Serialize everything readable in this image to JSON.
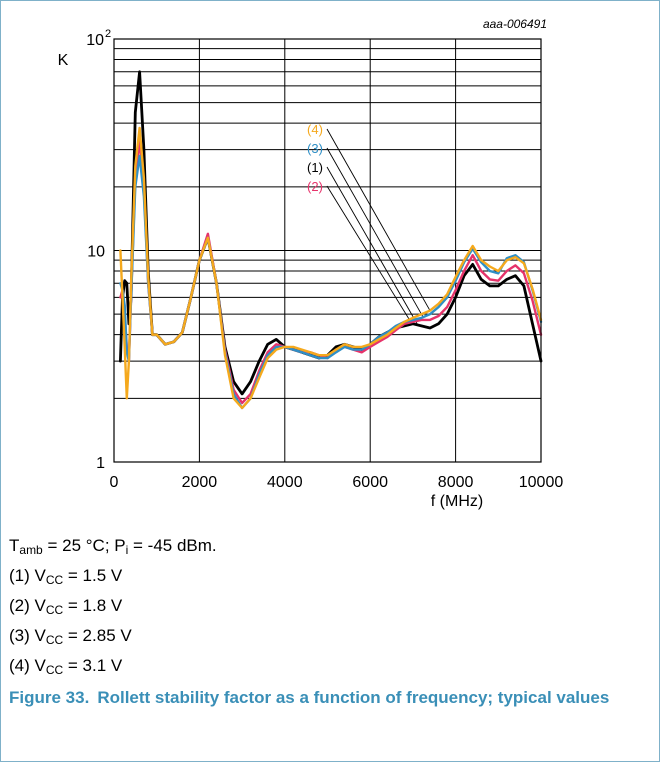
{
  "figure": {
    "ref": "aaa-006491",
    "number_label": "Figure 33.",
    "caption": "Rollett stability factor as a function of frequency; typical values"
  },
  "conditions": {
    "t_sym": "T",
    "t_sub": "amb",
    "t_rest": " = 25 °C; ",
    "p_sym": "P",
    "p_sub": "i",
    "p_rest": " = -45 dBm."
  },
  "legend_notes": [
    {
      "tag": "(1) ",
      "sym": "V",
      "sub": "CC",
      "rest": " = 1.5 V"
    },
    {
      "tag": "(2) ",
      "sym": "V",
      "sub": "CC",
      "rest": " = 1.8 V"
    },
    {
      "tag": "(3) ",
      "sym": "V",
      "sub": "CC",
      "rest": " = 2.85 V"
    },
    {
      "tag": "(4) ",
      "sym": "V",
      "sub": "CC",
      "rest": " = 3.1 V"
    }
  ],
  "chart_data": {
    "type": "line",
    "xlabel": "f (MHz)",
    "ylabel": "K",
    "xlim": [
      0,
      10000
    ],
    "ylim": [
      1,
      100
    ],
    "y_scale": "log",
    "x_ticks": [
      0,
      2000,
      4000,
      6000,
      8000,
      10000
    ],
    "x_tick_labels": [
      "0",
      "2000",
      "4000",
      "6000",
      "8000",
      "10000"
    ],
    "y_tick_labels": {
      "top": "10",
      "top_exp": "2",
      "mid": "10",
      "bottom": "1"
    },
    "grid": true,
    "series": [
      {
        "name": "(1)",
        "color": "#000000",
        "x": [
          150,
          200,
          250,
          300,
          350,
          400,
          500,
          600,
          700,
          800,
          900,
          1000,
          1200,
          1400,
          1600,
          1800,
          2000,
          2200,
          2400,
          2600,
          2800,
          3000,
          3200,
          3400,
          3600,
          3800,
          4000,
          4200,
          4400,
          4600,
          4800,
          5000,
          5200,
          5400,
          5600,
          5800,
          6000,
          6200,
          6400,
          6600,
          6800,
          7000,
          7200,
          7400,
          7600,
          7800,
          8000,
          8200,
          8400,
          8600,
          8800,
          9000,
          9200,
          9400,
          9600,
          9800,
          10000
        ],
        "y": [
          3.0,
          6.0,
          7.2,
          7.0,
          4.5,
          6.0,
          45.0,
          70.0,
          30.0,
          8.0,
          4.0,
          4.0,
          3.6,
          3.7,
          4.1,
          6.0,
          9.0,
          11.5,
          7.0,
          3.5,
          2.4,
          2.1,
          2.4,
          3.0,
          3.6,
          3.8,
          3.5,
          3.4,
          3.3,
          3.2,
          3.1,
          3.2,
          3.5,
          3.6,
          3.5,
          3.4,
          3.6,
          3.9,
          4.1,
          4.3,
          4.4,
          4.5,
          4.4,
          4.3,
          4.5,
          5.0,
          6.0,
          7.6,
          8.6,
          7.3,
          6.8,
          6.8,
          7.3,
          7.6,
          6.8,
          4.5,
          3.0
        ]
      },
      {
        "name": "(2)",
        "color": "#e6336b",
        "x": [
          150,
          200,
          250,
          300,
          350,
          400,
          500,
          600,
          700,
          800,
          900,
          1000,
          1200,
          1400,
          1600,
          1800,
          2000,
          2200,
          2400,
          2600,
          2800,
          3000,
          3200,
          3400,
          3600,
          3800,
          4000,
          4200,
          4400,
          4600,
          4800,
          5000,
          5200,
          5400,
          5600,
          5800,
          6000,
          6200,
          6400,
          6600,
          6800,
          7000,
          7200,
          7400,
          7600,
          7800,
          8000,
          8200,
          8400,
          8600,
          8800,
          9000,
          9200,
          9400,
          9600,
          9800,
          10000
        ],
        "y": [
          6.0,
          6.5,
          5.0,
          3.5,
          3.0,
          6.0,
          22.0,
          33.0,
          20.0,
          7.0,
          4.0,
          4.0,
          3.6,
          3.7,
          4.1,
          6.0,
          9.0,
          12.0,
          7.0,
          3.4,
          2.2,
          1.9,
          2.1,
          2.7,
          3.3,
          3.6,
          3.5,
          3.4,
          3.3,
          3.3,
          3.2,
          3.1,
          3.4,
          3.5,
          3.4,
          3.3,
          3.5,
          3.7,
          3.9,
          4.2,
          4.5,
          4.6,
          4.7,
          4.7,
          4.9,
          5.4,
          6.5,
          8.0,
          9.5,
          8.0,
          7.3,
          7.2,
          8.0,
          8.5,
          7.8,
          5.8,
          4.0
        ]
      },
      {
        "name": "(3)",
        "color": "#2f8fc6",
        "x": [
          150,
          200,
          250,
          300,
          350,
          400,
          500,
          600,
          700,
          800,
          900,
          1000,
          1200,
          1400,
          1600,
          1800,
          2000,
          2200,
          2400,
          2600,
          2800,
          3000,
          3200,
          3400,
          3600,
          3800,
          4000,
          4200,
          4400,
          4600,
          4800,
          5000,
          5200,
          5400,
          5600,
          5800,
          6000,
          6200,
          6400,
          6600,
          6800,
          7000,
          7200,
          7400,
          7600,
          7800,
          8000,
          8200,
          8400,
          8600,
          8800,
          9000,
          9200,
          9400,
          9600,
          9800,
          10000
        ],
        "y": [
          7.0,
          6.5,
          5.5,
          3.3,
          3.0,
          6.0,
          20.0,
          28.0,
          18.0,
          7.0,
          4.0,
          4.0,
          3.6,
          3.7,
          4.1,
          6.0,
          9.0,
          11.5,
          7.0,
          3.3,
          2.1,
          1.8,
          2.0,
          2.6,
          3.2,
          3.5,
          3.5,
          3.4,
          3.3,
          3.2,
          3.1,
          3.1,
          3.3,
          3.5,
          3.4,
          3.4,
          3.6,
          3.9,
          4.1,
          4.4,
          4.6,
          4.7,
          4.8,
          5.0,
          5.4,
          6.0,
          7.2,
          8.8,
          10.2,
          8.8,
          8.0,
          7.8,
          9.2,
          9.5,
          8.8,
          6.5,
          4.6
        ]
      },
      {
        "name": "(4)",
        "color": "#f5a91d",
        "x": [
          150,
          200,
          250,
          300,
          350,
          400,
          500,
          600,
          700,
          800,
          900,
          1000,
          1200,
          1400,
          1600,
          1800,
          2000,
          2200,
          2400,
          2600,
          2800,
          3000,
          3200,
          3400,
          3600,
          3800,
          4000,
          4200,
          4400,
          4600,
          4800,
          5000,
          5200,
          5400,
          5600,
          5800,
          6000,
          6200,
          6400,
          6600,
          6800,
          7000,
          7200,
          7400,
          7600,
          7800,
          8000,
          8200,
          8400,
          8600,
          8800,
          9000,
          9200,
          9400,
          9600,
          9800,
          10000
        ],
        "y": [
          10.0,
          6.0,
          3.5,
          2.0,
          3.0,
          7.0,
          25.0,
          38.0,
          22.0,
          7.5,
          4.0,
          4.0,
          3.6,
          3.7,
          4.1,
          6.0,
          9.0,
          11.5,
          7.0,
          3.2,
          2.0,
          1.8,
          2.0,
          2.5,
          3.1,
          3.4,
          3.5,
          3.5,
          3.4,
          3.3,
          3.2,
          3.2,
          3.4,
          3.6,
          3.5,
          3.5,
          3.6,
          3.8,
          4.0,
          4.3,
          4.6,
          4.8,
          5.0,
          5.2,
          5.6,
          6.2,
          7.5,
          9.0,
          10.5,
          9.0,
          8.4,
          8.0,
          9.0,
          9.3,
          8.7,
          6.6,
          4.7
        ]
      }
    ]
  }
}
